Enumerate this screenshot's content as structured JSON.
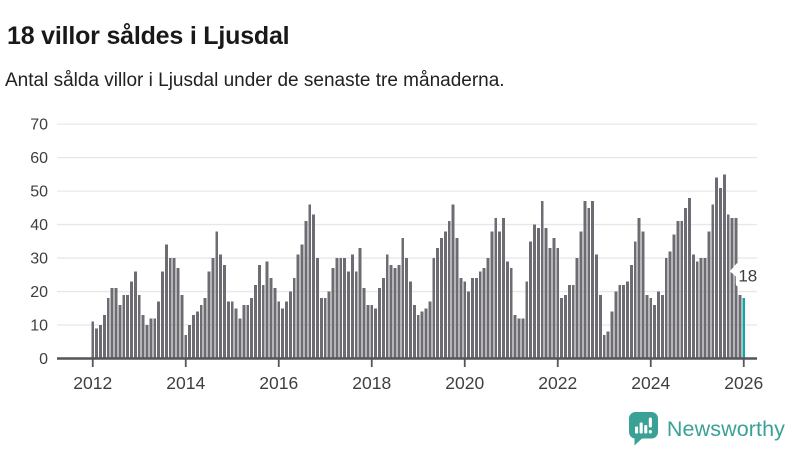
{
  "header": {
    "title": "18 villor såldes i Ljusdal",
    "subtitle": "Antal sålda villor i Ljusdal under de senaste tre månaderna."
  },
  "chart_data": {
    "type": "bar",
    "title": "18 villor såldes i Ljusdal",
    "subtitle": "Antal sålda villor i Ljusdal under de senaste tre månaderna.",
    "xlabel": "",
    "ylabel": "",
    "x_start": "2012-01",
    "x_end": "2026-01",
    "x_interval": "monthly",
    "x_tick_labels": [
      "2012",
      "2014",
      "2016",
      "2018",
      "2020",
      "2022",
      "2024",
      "2026"
    ],
    "x_tick_month_index": [
      0,
      24,
      48,
      72,
      96,
      120,
      144,
      168
    ],
    "y_ticks": [
      0,
      10,
      20,
      30,
      40,
      50,
      60,
      70
    ],
    "ylim": [
      0,
      72
    ],
    "grid": true,
    "legend": "none",
    "series": [
      {
        "name": "Antal sålda villor (rullande tre månader)",
        "values": [
          11,
          9,
          10,
          13,
          18,
          21,
          21,
          16,
          19,
          19,
          23,
          26,
          19,
          13,
          10,
          12,
          12,
          17,
          26,
          34,
          30,
          30,
          27,
          19,
          7,
          10,
          13,
          14,
          16,
          18,
          26,
          30,
          38,
          31,
          28,
          17,
          17,
          15,
          12,
          16,
          16,
          18,
          22,
          28,
          22,
          29,
          24,
          21,
          17,
          15,
          17,
          20,
          24,
          31,
          34,
          41,
          46,
          43,
          30,
          18,
          18,
          20,
          27,
          30,
          30,
          30,
          26,
          31,
          26,
          33,
          21,
          16,
          16,
          15,
          21,
          24,
          31,
          28,
          27,
          28,
          36,
          30,
          23,
          16,
          13,
          14,
          15,
          17,
          30,
          33,
          36,
          38,
          41,
          46,
          36,
          24,
          23,
          20,
          24,
          24,
          26,
          27,
          30,
          38,
          42,
          38,
          42,
          29,
          27,
          13,
          12,
          12,
          23,
          35,
          40,
          39,
          47,
          39,
          33,
          36,
          33,
          18,
          19,
          22,
          22,
          30,
          38,
          47,
          45,
          47,
          31,
          19,
          7,
          8,
          14,
          20,
          22,
          22,
          23,
          28,
          35,
          42,
          38,
          19,
          18,
          16,
          20,
          19,
          30,
          32,
          37,
          41,
          41,
          45,
          48,
          31,
          29,
          30,
          30,
          38,
          46,
          54,
          51,
          55,
          43,
          42,
          42,
          19,
          18
        ]
      }
    ],
    "highlight": {
      "index": 168,
      "value": 18,
      "label": "18"
    },
    "colors": {
      "bar": "#6c6c72",
      "highlight_bar": "#16a3a6",
      "grid": "#e8e8e8",
      "axis": "#55555a",
      "tick_label": "#3f3f3f",
      "annotation_text": "#3c3c3c"
    }
  },
  "annotation": {
    "label": "18"
  },
  "branding": {
    "name": "Newsworthy",
    "color": "#3aa197"
  }
}
